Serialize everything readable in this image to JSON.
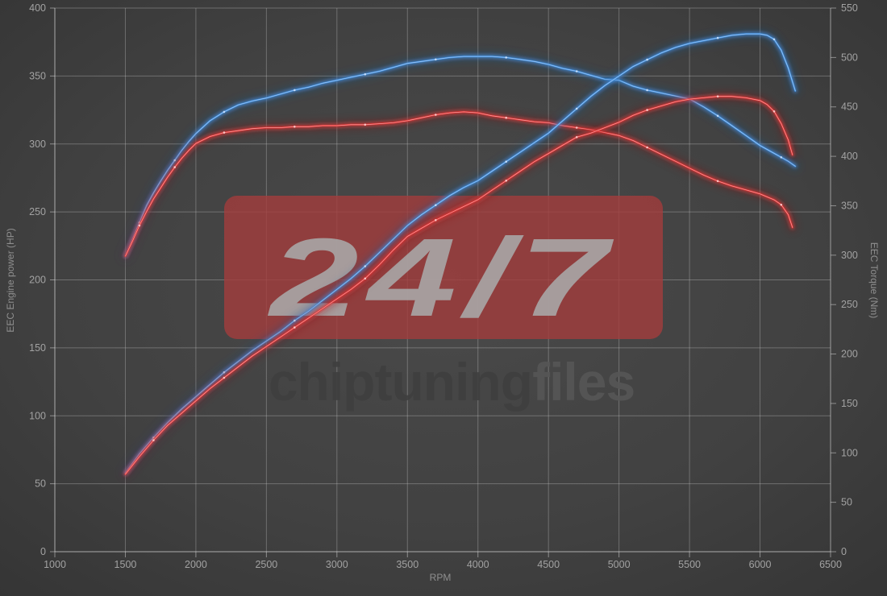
{
  "page": {
    "background_center": "#4a4a4a",
    "background_edge": "#343434",
    "grid_color": "#d2d2d2",
    "spine_color": "#e0e0e0"
  },
  "watermark": {
    "badge_text": "24/7",
    "badge_color": "#a33c3c",
    "brand_left": "chiptuning",
    "brand_right": "files"
  },
  "axes": {
    "x_ticks": [
      1000,
      1500,
      2000,
      2500,
      3000,
      3500,
      4000,
      4500,
      5000,
      5500,
      6000,
      6500
    ],
    "left_ticks": [
      0,
      50,
      100,
      150,
      200,
      250,
      300,
      350,
      400
    ],
    "right_ticks": [
      0,
      50,
      100,
      150,
      200,
      250,
      300,
      350,
      400,
      450,
      500,
      550
    ]
  },
  "chart_data": {
    "type": "line",
    "xlabel": "RPM",
    "ylabel_left": "EEC Engine power (HP)",
    "ylabel_right": "EEC Torque (Nm)",
    "x_range": [
      1000,
      6500
    ],
    "y_left_range": [
      0,
      400
    ],
    "y_right_range": [
      0,
      550
    ],
    "grid": true,
    "legend": "none",
    "series": [
      {
        "name": "blue-torque",
        "axis": "right",
        "unit": "Nm",
        "color": "#3f8ede",
        "glow": "#235a9e",
        "highlight": "#cfe4ff",
        "points": [
          [
            1500,
            299
          ],
          [
            1550,
            316
          ],
          [
            1600,
            333
          ],
          [
            1650,
            350
          ],
          [
            1700,
            363
          ],
          [
            1750,
            375
          ],
          [
            1800,
            386
          ],
          [
            1850,
            396
          ],
          [
            1900,
            406
          ],
          [
            1950,
            415
          ],
          [
            2000,
            423
          ],
          [
            2100,
            436
          ],
          [
            2200,
            445
          ],
          [
            2300,
            452
          ],
          [
            2400,
            456
          ],
          [
            2500,
            459
          ],
          [
            2600,
            463
          ],
          [
            2700,
            467
          ],
          [
            2800,
            470
          ],
          [
            2900,
            474
          ],
          [
            3000,
            477
          ],
          [
            3100,
            480
          ],
          [
            3200,
            483
          ],
          [
            3300,
            486
          ],
          [
            3400,
            490
          ],
          [
            3500,
            494
          ],
          [
            3600,
            496
          ],
          [
            3700,
            498
          ],
          [
            3800,
            500
          ],
          [
            3900,
            501
          ],
          [
            4000,
            501
          ],
          [
            4100,
            501
          ],
          [
            4200,
            500
          ],
          [
            4300,
            498
          ],
          [
            4400,
            496
          ],
          [
            4500,
            493
          ],
          [
            4600,
            489
          ],
          [
            4700,
            486
          ],
          [
            4800,
            482
          ],
          [
            4900,
            478
          ],
          [
            5000,
            477
          ],
          [
            5100,
            471
          ],
          [
            5200,
            467
          ],
          [
            5300,
            464
          ],
          [
            5400,
            461
          ],
          [
            5500,
            458
          ],
          [
            5600,
            450
          ],
          [
            5700,
            441
          ],
          [
            5800,
            431
          ],
          [
            5900,
            421
          ],
          [
            6000,
            411
          ],
          [
            6100,
            403
          ],
          [
            6150,
            399
          ],
          [
            6200,
            395
          ],
          [
            6250,
            390
          ]
        ]
      },
      {
        "name": "red-torque",
        "axis": "right",
        "unit": "Nm",
        "color": "#e03131",
        "glow": "#8a1d1d",
        "highlight": "#ffd2d2",
        "points": [
          [
            1500,
            299
          ],
          [
            1550,
            314
          ],
          [
            1600,
            330
          ],
          [
            1650,
            344
          ],
          [
            1700,
            357
          ],
          [
            1750,
            368
          ],
          [
            1800,
            379
          ],
          [
            1850,
            389
          ],
          [
            1900,
            398
          ],
          [
            1950,
            406
          ],
          [
            2000,
            413
          ],
          [
            2100,
            420
          ],
          [
            2200,
            424
          ],
          [
            2300,
            426
          ],
          [
            2400,
            428
          ],
          [
            2500,
            429
          ],
          [
            2600,
            429
          ],
          [
            2700,
            430
          ],
          [
            2800,
            430
          ],
          [
            2900,
            431
          ],
          [
            3000,
            431
          ],
          [
            3100,
            432
          ],
          [
            3200,
            432
          ],
          [
            3300,
            433
          ],
          [
            3400,
            434
          ],
          [
            3500,
            436
          ],
          [
            3600,
            439
          ],
          [
            3700,
            442
          ],
          [
            3800,
            444
          ],
          [
            3900,
            445
          ],
          [
            4000,
            444
          ],
          [
            4100,
            441
          ],
          [
            4200,
            439
          ],
          [
            4300,
            437
          ],
          [
            4400,
            435
          ],
          [
            4500,
            434
          ],
          [
            4600,
            431
          ],
          [
            4700,
            429
          ],
          [
            4800,
            427
          ],
          [
            4900,
            424
          ],
          [
            5000,
            421
          ],
          [
            5100,
            416
          ],
          [
            5200,
            409
          ],
          [
            5300,
            402
          ],
          [
            5400,
            395
          ],
          [
            5500,
            388
          ],
          [
            5600,
            381
          ],
          [
            5700,
            375
          ],
          [
            5800,
            370
          ],
          [
            5900,
            366
          ],
          [
            6000,
            362
          ],
          [
            6100,
            356
          ],
          [
            6150,
            351
          ],
          [
            6200,
            341
          ],
          [
            6230,
            328
          ]
        ]
      },
      {
        "name": "blue-power",
        "axis": "left",
        "unit": "HP",
        "color": "#3f8ede",
        "glow": "#235a9e",
        "highlight": "#cfe4ff",
        "points": [
          [
            1500,
            58
          ],
          [
            1600,
            72
          ],
          [
            1700,
            84
          ],
          [
            1800,
            95
          ],
          [
            1900,
            105
          ],
          [
            2000,
            114
          ],
          [
            2100,
            123
          ],
          [
            2200,
            132
          ],
          [
            2300,
            140
          ],
          [
            2400,
            148
          ],
          [
            2500,
            155
          ],
          [
            2600,
            162
          ],
          [
            2700,
            170
          ],
          [
            2800,
            177
          ],
          [
            2900,
            185
          ],
          [
            3000,
            193
          ],
          [
            3100,
            201
          ],
          [
            3200,
            210
          ],
          [
            3300,
            220
          ],
          [
            3400,
            230
          ],
          [
            3500,
            240
          ],
          [
            3600,
            248
          ],
          [
            3700,
            255
          ],
          [
            3800,
            262
          ],
          [
            3900,
            268
          ],
          [
            4000,
            273
          ],
          [
            4100,
            280
          ],
          [
            4200,
            287
          ],
          [
            4300,
            294
          ],
          [
            4400,
            301
          ],
          [
            4500,
            308
          ],
          [
            4600,
            317
          ],
          [
            4700,
            326
          ],
          [
            4800,
            335
          ],
          [
            4900,
            343
          ],
          [
            5000,
            350
          ],
          [
            5100,
            357
          ],
          [
            5200,
            362
          ],
          [
            5300,
            367
          ],
          [
            5400,
            371
          ],
          [
            5500,
            374
          ],
          [
            5600,
            376
          ],
          [
            5700,
            378
          ],
          [
            5800,
            380
          ],
          [
            5900,
            381
          ],
          [
            6000,
            381
          ],
          [
            6050,
            380
          ],
          [
            6100,
            377
          ],
          [
            6150,
            369
          ],
          [
            6200,
            356
          ],
          [
            6250,
            339
          ]
        ]
      },
      {
        "name": "red-power",
        "axis": "left",
        "unit": "HP",
        "color": "#e03131",
        "glow": "#8a1d1d",
        "highlight": "#ffd2d2",
        "points": [
          [
            1500,
            57
          ],
          [
            1600,
            70
          ],
          [
            1700,
            82
          ],
          [
            1800,
            93
          ],
          [
            1900,
            102
          ],
          [
            2000,
            111
          ],
          [
            2100,
            120
          ],
          [
            2200,
            128
          ],
          [
            2300,
            136
          ],
          [
            2400,
            144
          ],
          [
            2500,
            151
          ],
          [
            2600,
            158
          ],
          [
            2700,
            165
          ],
          [
            2800,
            172
          ],
          [
            2900,
            179
          ],
          [
            3000,
            186
          ],
          [
            3100,
            193
          ],
          [
            3200,
            201
          ],
          [
            3300,
            211
          ],
          [
            3400,
            222
          ],
          [
            3500,
            232
          ],
          [
            3600,
            238
          ],
          [
            3700,
            244
          ],
          [
            3800,
            249
          ],
          [
            3900,
            254
          ],
          [
            4000,
            259
          ],
          [
            4100,
            266
          ],
          [
            4200,
            273
          ],
          [
            4300,
            280
          ],
          [
            4400,
            287
          ],
          [
            4500,
            293
          ],
          [
            4600,
            299
          ],
          [
            4700,
            305
          ],
          [
            4800,
            308
          ],
          [
            4900,
            312
          ],
          [
            5000,
            316
          ],
          [
            5100,
            321
          ],
          [
            5200,
            325
          ],
          [
            5300,
            328
          ],
          [
            5400,
            331
          ],
          [
            5500,
            333
          ],
          [
            5600,
            334
          ],
          [
            5700,
            335
          ],
          [
            5800,
            335
          ],
          [
            5900,
            334
          ],
          [
            6000,
            332
          ],
          [
            6050,
            329
          ],
          [
            6100,
            324
          ],
          [
            6150,
            315
          ],
          [
            6200,
            303
          ],
          [
            6230,
            292
          ]
        ]
      }
    ]
  }
}
